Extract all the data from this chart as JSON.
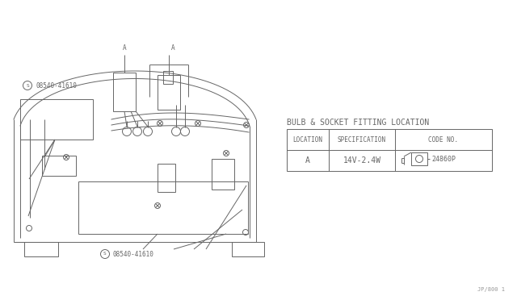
{
  "bg_color": "#ffffff",
  "line_color": "#666666",
  "line_color_dark": "#444444",
  "title": "BULB & SOCKET FITTING LOCATION",
  "table_headers": [
    "LOCATION",
    "SPECIFICATION",
    "CODE NO."
  ],
  "table_row": [
    "A",
    "14V-2.4W",
    "24860P"
  ],
  "label_s": "S08540-41610",
  "label_a": "A",
  "footer": "JP/800 1"
}
